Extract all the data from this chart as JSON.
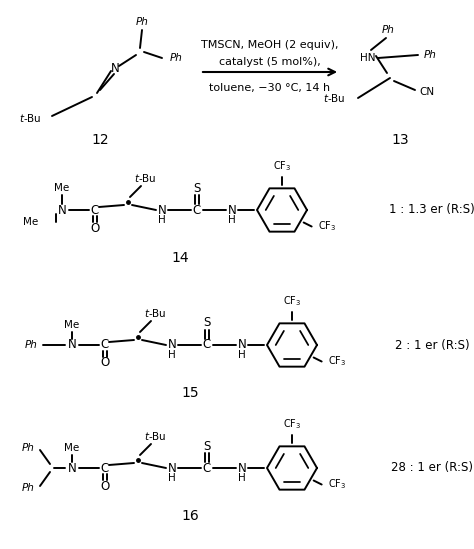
{
  "background_color": "#ffffff",
  "reaction_conditions_line1": "TMSCN, MeOH (2 equiv),",
  "reaction_conditions_line2": "catalyst (5 mol%),",
  "reaction_conditions_line3": "toluene, −30 °C, 14 h",
  "compound12_label": "12",
  "compound13_label": "13",
  "catalyst_labels": [
    "14",
    "15",
    "16"
  ],
  "er_values": [
    "1 : 1.3 er (R:S)",
    "2 : 1 er (R:S)",
    "28 : 1 er (R:S)"
  ],
  "er_bold_parts": [
    "1",
    "1.3",
    "2",
    "1",
    "28",
    "1"
  ],
  "figsize": [
    4.74,
    5.49
  ],
  "dpi": 100
}
